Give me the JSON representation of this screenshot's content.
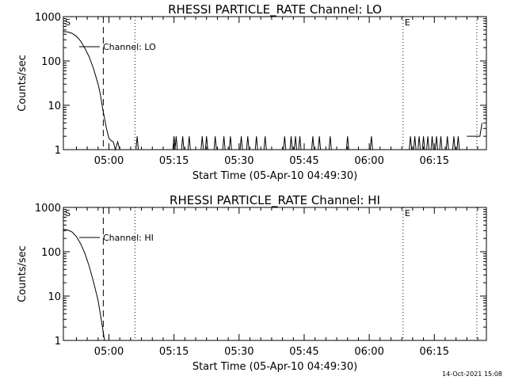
{
  "page": {
    "timestamp": "14-Oct-2021 15:08"
  },
  "chart_data": [
    {
      "type": "line",
      "title": "RHESSI PARTICLE_RATE Channel: LO",
      "xlabel": "Start Time (05-Apr-10 04:49:30)",
      "ylabel": "Counts/sec",
      "yscale": "log",
      "ylim": [
        1,
        1000
      ],
      "xlim_minutes": [
        0,
        97.5
      ],
      "xtick_labels": [
        "05:00",
        "05:15",
        "05:30",
        "05:45",
        "06:00",
        "06:15"
      ],
      "ytick_labels": [
        "1",
        "10",
        "100",
        "1000"
      ],
      "series": [
        {
          "name": "Channel: LO",
          "x": [
            0,
            1,
            2,
            3,
            4,
            5,
            6,
            7,
            8,
            8.5,
            9,
            9.5,
            10,
            10.5,
            11,
            11.5,
            12,
            12.5,
            13,
            13.5,
            14
          ],
          "values": [
            460,
            450,
            420,
            360,
            280,
            190,
            120,
            65,
            30,
            18,
            9,
            5,
            2.8,
            1.8,
            1.6,
            1.5,
            1,
            1.5,
            1,
            1,
            1
          ]
        }
      ],
      "spikes_minutes": [
        17,
        26,
        25.5,
        27.5,
        29,
        32,
        33,
        35,
        37,
        38.5,
        41,
        42.5,
        44.5,
        46.5,
        51,
        52.5,
        53.5,
        54.5,
        57.5,
        59,
        61.5,
        65.5,
        71,
        80,
        81,
        82,
        83,
        84,
        85,
        86,
        87,
        88.5,
        90,
        91
      ],
      "tail_x": [
        93,
        94,
        95,
        96,
        96.5
      ],
      "tail_values": [
        2,
        2,
        2,
        2,
        4
      ],
      "markers": [
        {
          "label": "S",
          "x": 0,
          "style": "solid"
        },
        {
          "label": "",
          "x": 9.2,
          "style": "dashed"
        },
        {
          "label": "",
          "x": 16.5,
          "style": "dotted"
        },
        {
          "label": "E",
          "x": 78.3,
          "style": "dotted"
        },
        {
          "label": "",
          "x": 95.3,
          "style": "dotted"
        }
      ]
    },
    {
      "type": "line",
      "title": "RHESSI PARTICLE_RATE Channel: HI",
      "xlabel": "Start Time (05-Apr-10 04:49:30)",
      "ylabel": "Counts/sec",
      "yscale": "log",
      "ylim": [
        1,
        1000
      ],
      "xlim_minutes": [
        0,
        97.5
      ],
      "xtick_labels": [
        "05:00",
        "05:15",
        "05:30",
        "05:45",
        "06:00",
        "06:15"
      ],
      "ytick_labels": [
        "1",
        "10",
        "100",
        "1000"
      ],
      "series": [
        {
          "name": "Channel: HI",
          "x": [
            0,
            1,
            2,
            3,
            4,
            5,
            6,
            7,
            8,
            8.5,
            9,
            9.5
          ],
          "values": [
            320,
            310,
            280,
            220,
            150,
            90,
            45,
            20,
            8,
            4,
            2,
            1
          ]
        }
      ],
      "markers": [
        {
          "label": "S",
          "x": 0,
          "style": "solid"
        },
        {
          "label": "",
          "x": 9.2,
          "style": "dashed"
        },
        {
          "label": "",
          "x": 16.5,
          "style": "dotted"
        },
        {
          "label": "E",
          "x": 78.3,
          "style": "dotted"
        },
        {
          "label": "",
          "x": 95.3,
          "style": "dotted"
        }
      ]
    }
  ]
}
